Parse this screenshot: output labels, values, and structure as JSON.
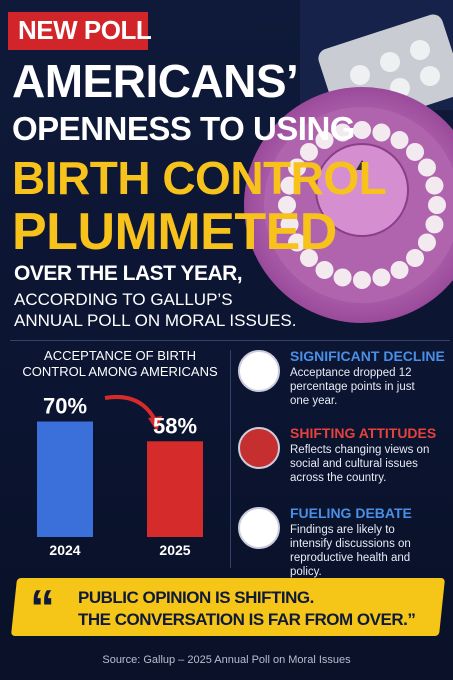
{
  "header": {
    "badge": "NEW POLL",
    "title_lines": [
      "AMERICANS’",
      "OPENNESS TO USING",
      "BIRTH CONTROL",
      "PLUMMETED"
    ],
    "subtitle_lines": [
      "OVER THE LAST YEAR,",
      "ACCORDING TO GALLUP’S",
      "ANNUAL POLL ON MORAL ISSUES."
    ]
  },
  "chart_data": {
    "type": "bar",
    "title": "ACCEPTANCE OF BIRTH CONTROL AMONG AMERICANS",
    "categories": [
      "2024",
      "2025"
    ],
    "values": [
      70,
      58
    ],
    "value_labels": [
      "70%",
      "58%"
    ],
    "colors": [
      "#3b6fd9",
      "#d52b2b"
    ]
  },
  "highlights": [
    {
      "title": "SIGNIFICANT DECLINE",
      "text": "Acceptance dropped 12 percentage points in just one year.",
      "color": "#4a8fe6"
    },
    {
      "title": "SHIFTING ATTITUDES",
      "text": "Reflects changing views on social and cultural issues across the country.",
      "color": "#e5423d"
    },
    {
      "title": "FUELING DEBATE",
      "text": "Findings are likely to intensify discussions on reproductive health and policy.",
      "color": "#4a8fe6"
    }
  ],
  "quote": {
    "mark": "“",
    "lines": [
      "PUBLIC OPINION IS SHIFTING.",
      "THE CONVERSATION IS FAR FROM OVER.”"
    ]
  },
  "source": "Source: Gallup – 2025 Annual Poll on Moral Issues"
}
